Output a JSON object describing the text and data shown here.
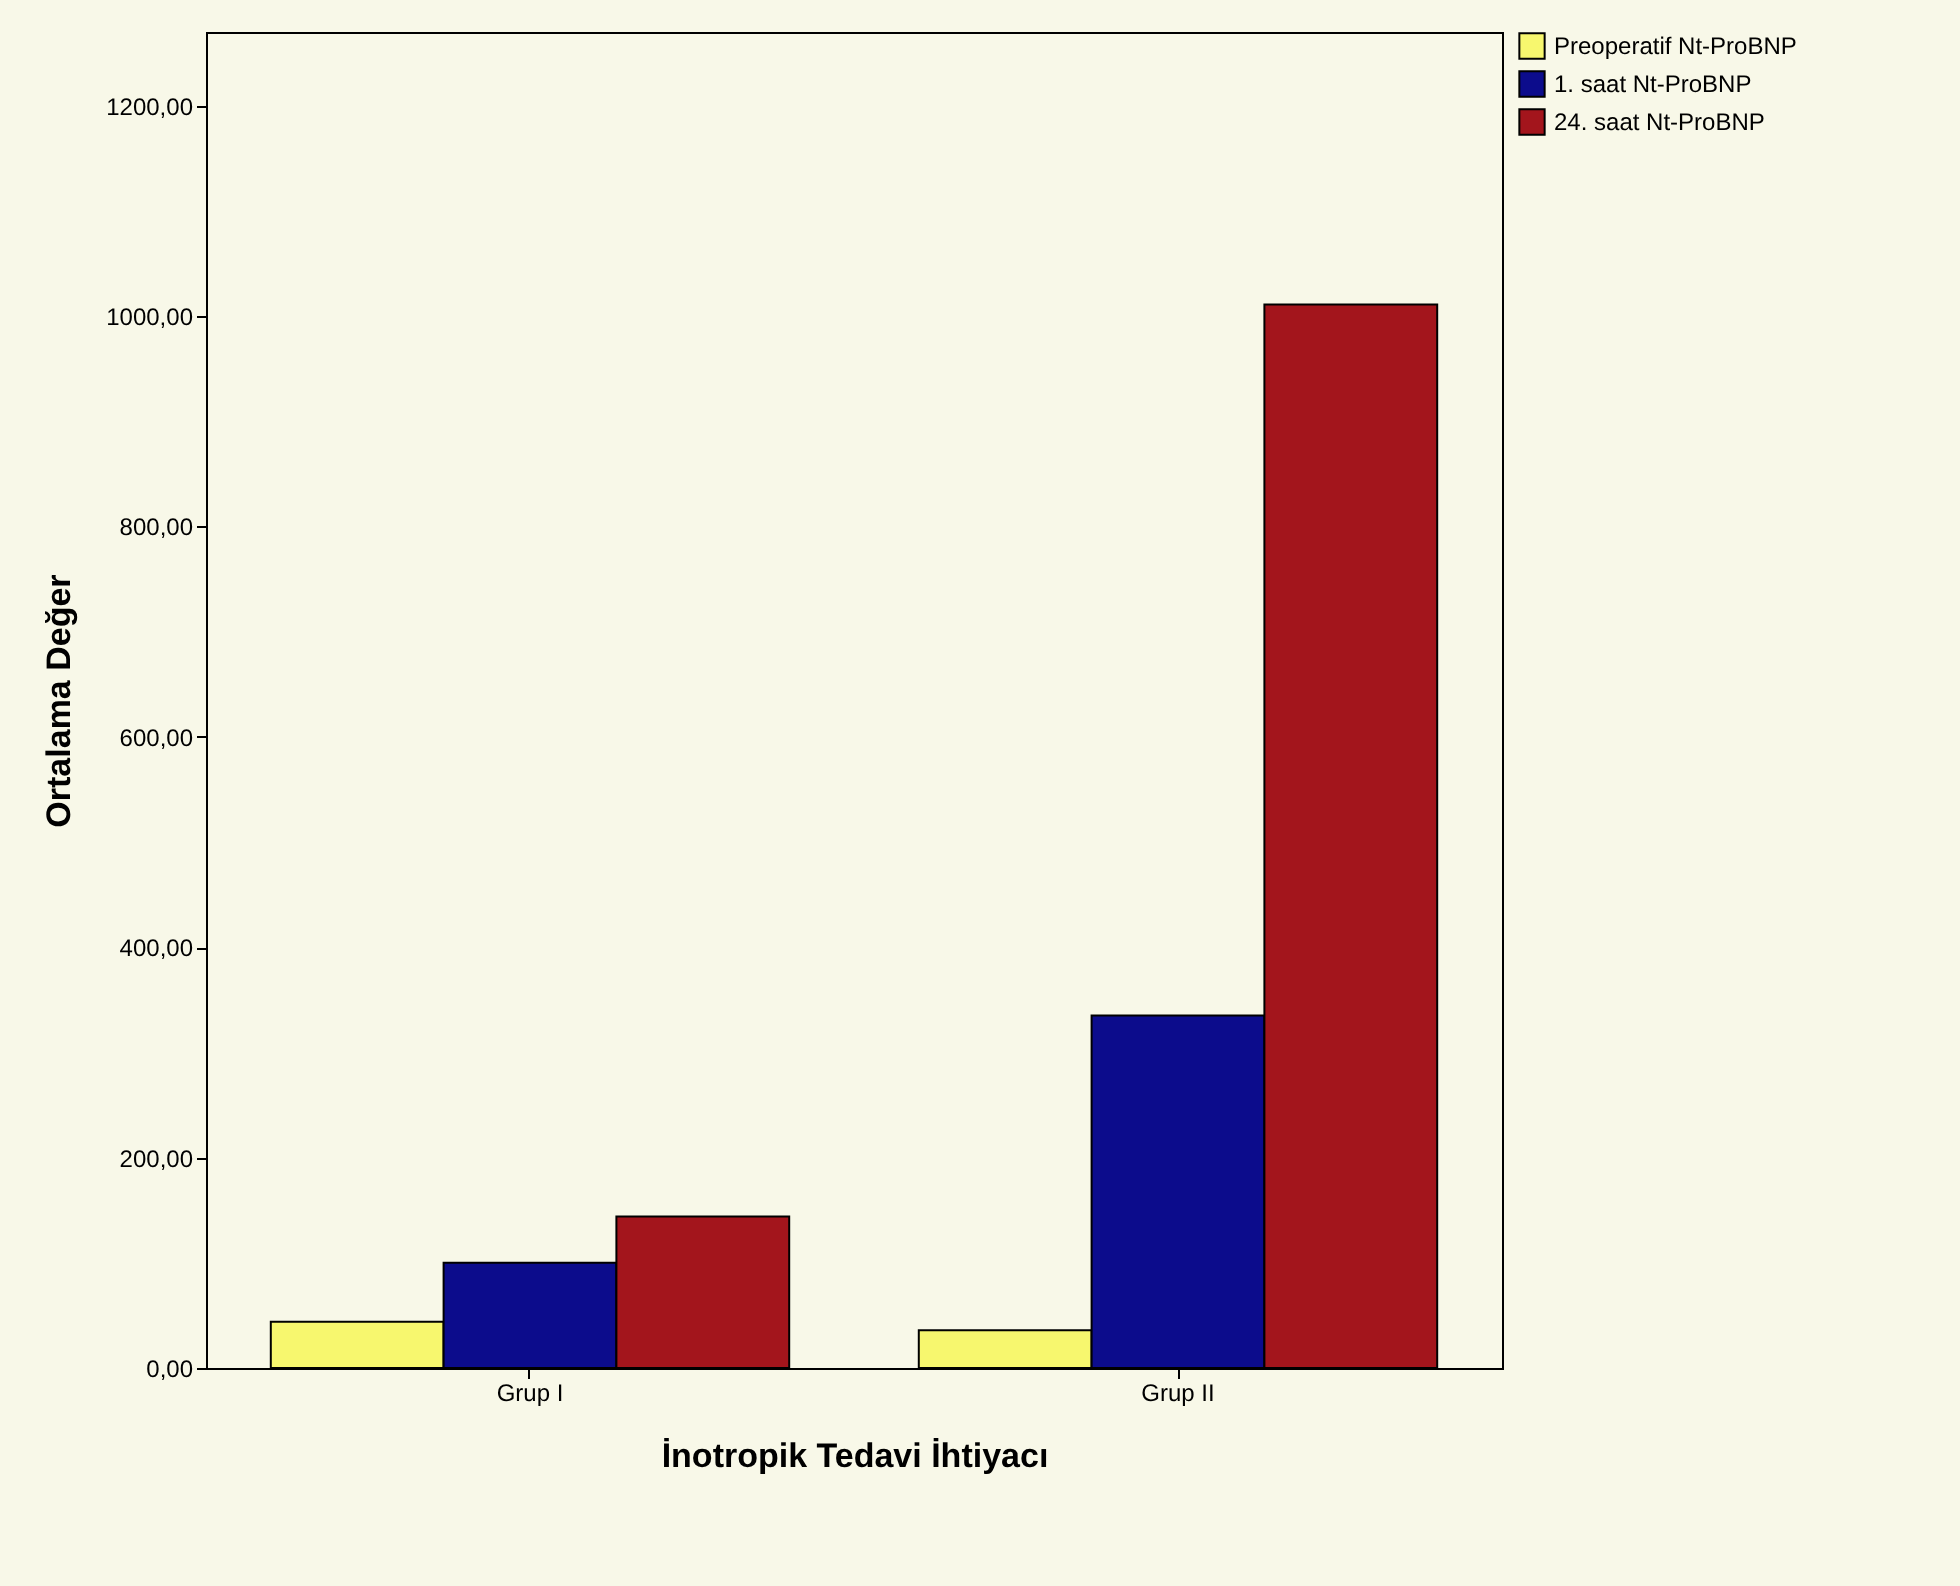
{
  "chart_data": {
    "type": "bar",
    "xlabel": "İnotropik Tedavi İhtiyacı",
    "ylabel": "Ortalama Değer",
    "categories": [
      "Grup I",
      "Grup II"
    ],
    "series": [
      {
        "name": "Preoperatif Nt-ProBNP",
        "color": "#f7f76e",
        "values": [
          44,
          36
        ]
      },
      {
        "name": "1. saat Nt-ProBNP",
        "color": "#0c0c8c",
        "values": [
          100,
          335
        ]
      },
      {
        "name": "24. saat Nt-ProBNP",
        "color": "#a3151c",
        "values": [
          144,
          1011
        ]
      }
    ],
    "ylim": [
      0,
      1270
    ],
    "yticks": [
      {
        "value": 0,
        "label": "0,00"
      },
      {
        "value": 200,
        "label": "200,00"
      },
      {
        "value": 400,
        "label": "400,00"
      },
      {
        "value": 600,
        "label": "600,00"
      },
      {
        "value": 800,
        "label": "800,00"
      },
      {
        "value": 1000,
        "label": "1000,00"
      },
      {
        "value": 1200,
        "label": "1200,00"
      }
    ],
    "grid": false,
    "legend": "top right"
  }
}
